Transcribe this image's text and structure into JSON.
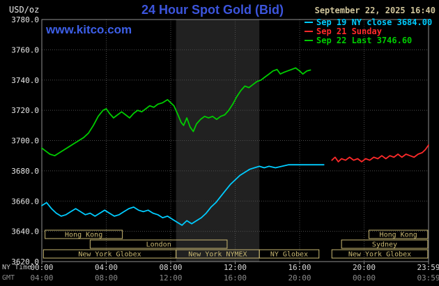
{
  "header": {
    "units": "USD/oz",
    "title": "24 Hour Spot Gold (Bid)",
    "datetime": "September 22, 2025 16:40",
    "site": "www.kitco.com"
  },
  "legend": [
    {
      "label": "Sep 19 NY close 3684.00",
      "color": "#00ccff"
    },
    {
      "label": "Sep 21 Sunday",
      "color": "#ff2a2a"
    },
    {
      "label": "Sep 22 Last 3746.60",
      "color": "#00cc00"
    }
  ],
  "axes": {
    "ny_label": "NY Time",
    "gmt_label": "GMT",
    "y_ticks": [
      {
        "value": 3780,
        "label": "3780.0"
      },
      {
        "value": 3760,
        "label": "3760.0"
      },
      {
        "value": 3740,
        "label": "3740.0"
      },
      {
        "value": 3720,
        "label": "3720.0"
      },
      {
        "value": 3700,
        "label": "3700.0"
      },
      {
        "value": 3680,
        "label": "3680.0"
      },
      {
        "value": 3660,
        "label": "3660.0"
      },
      {
        "value": 3640,
        "label": "3640.0"
      },
      {
        "value": 3620,
        "label": "3620.0"
      }
    ],
    "x_ticks": [
      {
        "hour": 0,
        "ny": "00:00",
        "gmt": "04:00"
      },
      {
        "hour": 4,
        "ny": "04:00",
        "gmt": "08:00"
      },
      {
        "hour": 8,
        "ny": "08:00",
        "gmt": "12:00"
      },
      {
        "hour": 12,
        "ny": "12:00",
        "gmt": "16:00"
      },
      {
        "hour": 16,
        "ny": "16:00",
        "gmt": "20:00"
      },
      {
        "hour": 20,
        "ny": "20:00",
        "gmt": "00:00"
      },
      {
        "hour": 24,
        "ny": "23:59",
        "gmt": "03:59"
      }
    ]
  },
  "sessions": {
    "color": "#c9b872",
    "rows": [
      [
        {
          "label": "Hong Kong",
          "start": 0.2,
          "end": 5.0
        },
        {
          "label": "Hong Kong",
          "start": 20.3,
          "end": 23.95
        }
      ],
      [
        {
          "label": "London",
          "start": 3.0,
          "end": 11.5
        },
        {
          "label": "Sydney",
          "start": 18.6,
          "end": 23.95
        }
      ],
      [
        {
          "label": "New York Globex",
          "start": 0.1,
          "end": 8.33
        },
        {
          "label": "New York NYMEX",
          "start": 8.33,
          "end": 13.5
        },
        {
          "label": "NY Globex",
          "start": 13.5,
          "end": 17.2
        },
        {
          "label": "New York Globex",
          "start": 18.0,
          "end": 23.95
        }
      ]
    ]
  },
  "chart_data": {
    "type": "line",
    "title": "24 Hour Spot Gold (Bid)",
    "ylabel": "USD/oz",
    "xlabel": "NY Time",
    "ylim": [
      3620,
      3780
    ],
    "xlim_hours": [
      0,
      24
    ],
    "grid": "dotted",
    "legend_position": "top-right",
    "shaded_band": {
      "start_hour": 8.33,
      "end_hour": 13.5,
      "color": "#212121"
    },
    "series": [
      {
        "id": "sep19",
        "name": "Sep 19 NY close 3684.00",
        "color": "#00ccff",
        "points": [
          [
            0,
            3657
          ],
          [
            0.3,
            3659
          ],
          [
            0.6,
            3655
          ],
          [
            0.9,
            3652
          ],
          [
            1.2,
            3650
          ],
          [
            1.5,
            3651
          ],
          [
            1.8,
            3653
          ],
          [
            2.1,
            3655
          ],
          [
            2.4,
            3653
          ],
          [
            2.7,
            3651
          ],
          [
            3.0,
            3652
          ],
          [
            3.3,
            3650
          ],
          [
            3.6,
            3652
          ],
          [
            3.9,
            3654
          ],
          [
            4.2,
            3652
          ],
          [
            4.5,
            3650
          ],
          [
            4.8,
            3651
          ],
          [
            5.1,
            3653
          ],
          [
            5.4,
            3655
          ],
          [
            5.7,
            3656
          ],
          [
            6.0,
            3654
          ],
          [
            6.3,
            3653
          ],
          [
            6.6,
            3654
          ],
          [
            6.9,
            3652
          ],
          [
            7.2,
            3651
          ],
          [
            7.5,
            3649
          ],
          [
            7.8,
            3650
          ],
          [
            8.1,
            3648
          ],
          [
            8.4,
            3646
          ],
          [
            8.7,
            3644
          ],
          [
            9.0,
            3647
          ],
          [
            9.3,
            3645
          ],
          [
            9.6,
            3647
          ],
          [
            9.9,
            3649
          ],
          [
            10.2,
            3652
          ],
          [
            10.5,
            3656
          ],
          [
            10.8,
            3659
          ],
          [
            11.1,
            3663
          ],
          [
            11.4,
            3667
          ],
          [
            11.7,
            3671
          ],
          [
            12.0,
            3674
          ],
          [
            12.3,
            3677
          ],
          [
            12.6,
            3679
          ],
          [
            12.9,
            3681
          ],
          [
            13.2,
            3682
          ],
          [
            13.5,
            3683
          ],
          [
            13.8,
            3682
          ],
          [
            14.1,
            3683
          ],
          [
            14.5,
            3682
          ],
          [
            14.9,
            3683
          ],
          [
            15.3,
            3684
          ],
          [
            15.8,
            3684
          ],
          [
            16.3,
            3684
          ],
          [
            17.5,
            3684
          ]
        ]
      },
      {
        "id": "sep21",
        "name": "Sep 21 Sunday",
        "color": "#ff2a2a",
        "points": [
          [
            18.0,
            3687
          ],
          [
            18.2,
            3689
          ],
          [
            18.4,
            3686
          ],
          [
            18.6,
            3688
          ],
          [
            18.85,
            3687
          ],
          [
            19.1,
            3689
          ],
          [
            19.35,
            3687
          ],
          [
            19.6,
            3688
          ],
          [
            19.85,
            3686
          ],
          [
            20.1,
            3688
          ],
          [
            20.35,
            3687
          ],
          [
            20.6,
            3689
          ],
          [
            20.85,
            3688
          ],
          [
            21.1,
            3690
          ],
          [
            21.35,
            3688
          ],
          [
            21.6,
            3690
          ],
          [
            21.85,
            3689
          ],
          [
            22.1,
            3691
          ],
          [
            22.35,
            3689
          ],
          [
            22.6,
            3691
          ],
          [
            22.85,
            3690
          ],
          [
            23.1,
            3689
          ],
          [
            23.35,
            3691
          ],
          [
            23.6,
            3692
          ],
          [
            23.8,
            3694
          ],
          [
            24.0,
            3697
          ]
        ]
      },
      {
        "id": "sep22",
        "name": "Sep 22 Last 3746.60",
        "color": "#00cc00",
        "points": [
          [
            0,
            3695
          ],
          [
            0.25,
            3693
          ],
          [
            0.5,
            3691
          ],
          [
            0.8,
            3690
          ],
          [
            1.1,
            3692
          ],
          [
            1.4,
            3694
          ],
          [
            1.7,
            3696
          ],
          [
            2.0,
            3698
          ],
          [
            2.3,
            3700
          ],
          [
            2.6,
            3702
          ],
          [
            2.9,
            3705
          ],
          [
            3.2,
            3710
          ],
          [
            3.5,
            3716
          ],
          [
            3.8,
            3720
          ],
          [
            4.0,
            3721
          ],
          [
            4.2,
            3718
          ],
          [
            4.45,
            3715
          ],
          [
            4.7,
            3717
          ],
          [
            4.95,
            3719
          ],
          [
            5.2,
            3717
          ],
          [
            5.45,
            3715
          ],
          [
            5.7,
            3718
          ],
          [
            5.95,
            3720
          ],
          [
            6.2,
            3719
          ],
          [
            6.45,
            3721
          ],
          [
            6.7,
            3723
          ],
          [
            6.95,
            3722
          ],
          [
            7.2,
            3724
          ],
          [
            7.5,
            3725
          ],
          [
            7.8,
            3727
          ],
          [
            8.0,
            3725
          ],
          [
            8.2,
            3723
          ],
          [
            8.45,
            3717
          ],
          [
            8.65,
            3712
          ],
          [
            8.8,
            3710
          ],
          [
            9.0,
            3715
          ],
          [
            9.2,
            3709
          ],
          [
            9.4,
            3706
          ],
          [
            9.6,
            3711
          ],
          [
            9.85,
            3714
          ],
          [
            10.1,
            3716
          ],
          [
            10.35,
            3715
          ],
          [
            10.6,
            3716
          ],
          [
            10.85,
            3714
          ],
          [
            11.1,
            3716
          ],
          [
            11.35,
            3717
          ],
          [
            11.6,
            3720
          ],
          [
            11.85,
            3724
          ],
          [
            12.1,
            3729
          ],
          [
            12.35,
            3733
          ],
          [
            12.6,
            3736
          ],
          [
            12.85,
            3735
          ],
          [
            13.1,
            3737
          ],
          [
            13.35,
            3739
          ],
          [
            13.6,
            3740
          ],
          [
            13.85,
            3742
          ],
          [
            14.1,
            3744
          ],
          [
            14.35,
            3746
          ],
          [
            14.6,
            3747
          ],
          [
            14.8,
            3744
          ],
          [
            15.0,
            3745
          ],
          [
            15.25,
            3746
          ],
          [
            15.5,
            3747
          ],
          [
            15.75,
            3748
          ],
          [
            16.0,
            3746
          ],
          [
            16.2,
            3744
          ],
          [
            16.45,
            3746
          ],
          [
            16.67,
            3746.6
          ]
        ]
      }
    ]
  }
}
